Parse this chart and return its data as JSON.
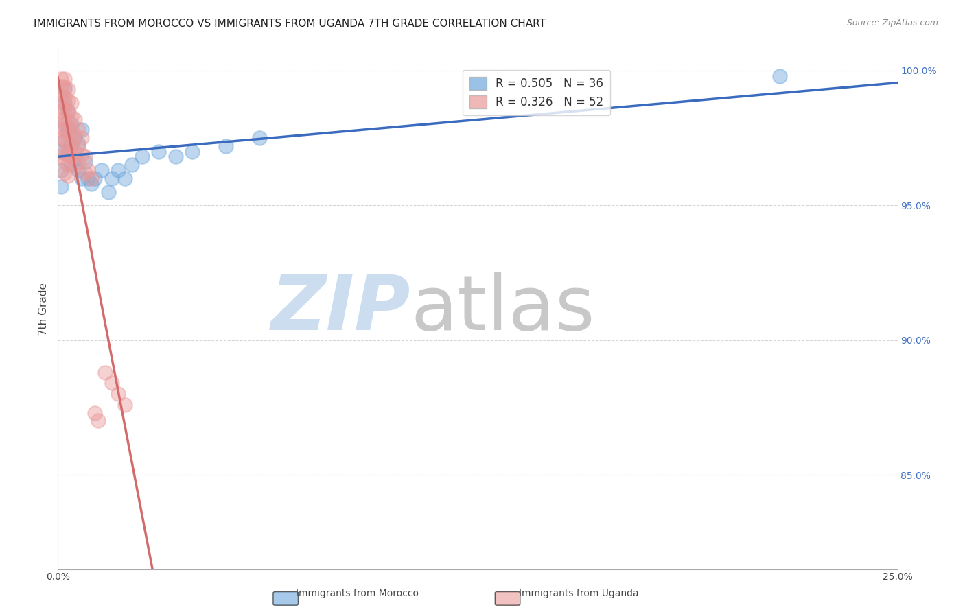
{
  "title": "IMMIGRANTS FROM MOROCCO VS IMMIGRANTS FROM UGANDA 7TH GRADE CORRELATION CHART",
  "source": "Source: ZipAtlas.com",
  "ylabel": "7th Grade",
  "R_morocco": 0.505,
  "N_morocco": 36,
  "R_uganda": 0.326,
  "N_uganda": 52,
  "color_morocco": "#6fa8dc",
  "color_uganda": "#ea9999",
  "line_color_morocco": "#3a6bbf",
  "line_color_uganda": "#d46b6b",
  "xlim": [
    0.0,
    0.25
  ],
  "ylim": [
    0.815,
    1.008
  ],
  "y_ticks": [
    0.85,
    0.9,
    0.95,
    1.0
  ],
  "y_tick_labels": [
    "85.0%",
    "90.0%",
    "95.0%",
    "100.0%"
  ],
  "x_tick_left": "0.0%",
  "x_tick_right": "25.0%",
  "legend_morocco": "Immigrants from Morocco",
  "legend_uganda": "Immigrants from Uganda",
  "background_color": "#ffffff",
  "grid_color": "#cccccc",
  "title_color": "#222222",
  "axis_label_color": "#444444",
  "right_axis_color": "#4472c4",
  "watermark_zip_color": "#ccddf0",
  "watermark_atlas_color": "#c8c8c8",
  "morocco_x": [
    0.001,
    0.001,
    0.001,
    0.002,
    0.002,
    0.002,
    0.002,
    0.003,
    0.003,
    0.003,
    0.004,
    0.004,
    0.004,
    0.005,
    0.005,
    0.006,
    0.006,
    0.007,
    0.007,
    0.008,
    0.009,
    0.01,
    0.011,
    0.013,
    0.015,
    0.016,
    0.018,
    0.02,
    0.022,
    0.025,
    0.03,
    0.035,
    0.04,
    0.05,
    0.06,
    0.215
  ],
  "morocco_y": [
    0.97,
    0.963,
    0.957,
    0.993,
    0.988,
    0.98,
    0.974,
    0.985,
    0.978,
    0.97,
    0.98,
    0.973,
    0.965,
    0.975,
    0.967,
    0.973,
    0.963,
    0.978,
    0.96,
    0.966,
    0.96,
    0.958,
    0.96,
    0.963,
    0.955,
    0.96,
    0.963,
    0.96,
    0.965,
    0.968,
    0.97,
    0.968,
    0.97,
    0.972,
    0.975,
    0.998
  ],
  "uganda_x": [
    0.001,
    0.001,
    0.001,
    0.001,
    0.001,
    0.001,
    0.001,
    0.001,
    0.001,
    0.002,
    0.002,
    0.002,
    0.002,
    0.002,
    0.002,
    0.002,
    0.002,
    0.002,
    0.002,
    0.003,
    0.003,
    0.003,
    0.003,
    0.003,
    0.003,
    0.003,
    0.003,
    0.003,
    0.004,
    0.004,
    0.004,
    0.004,
    0.004,
    0.005,
    0.005,
    0.005,
    0.005,
    0.006,
    0.006,
    0.006,
    0.007,
    0.007,
    0.008,
    0.008,
    0.009,
    0.01,
    0.011,
    0.012,
    0.014,
    0.016,
    0.018,
    0.02
  ],
  "uganda_y": [
    0.997,
    0.994,
    0.991,
    0.988,
    0.985,
    0.982,
    0.978,
    0.975,
    0.968,
    0.997,
    0.994,
    0.99,
    0.986,
    0.982,
    0.978,
    0.974,
    0.97,
    0.966,
    0.962,
    0.993,
    0.989,
    0.985,
    0.981,
    0.977,
    0.973,
    0.969,
    0.965,
    0.961,
    0.988,
    0.983,
    0.978,
    0.973,
    0.968,
    0.982,
    0.976,
    0.97,
    0.965,
    0.978,
    0.972,
    0.966,
    0.975,
    0.969,
    0.968,
    0.962,
    0.963,
    0.96,
    0.873,
    0.87,
    0.888,
    0.884,
    0.88,
    0.876
  ]
}
